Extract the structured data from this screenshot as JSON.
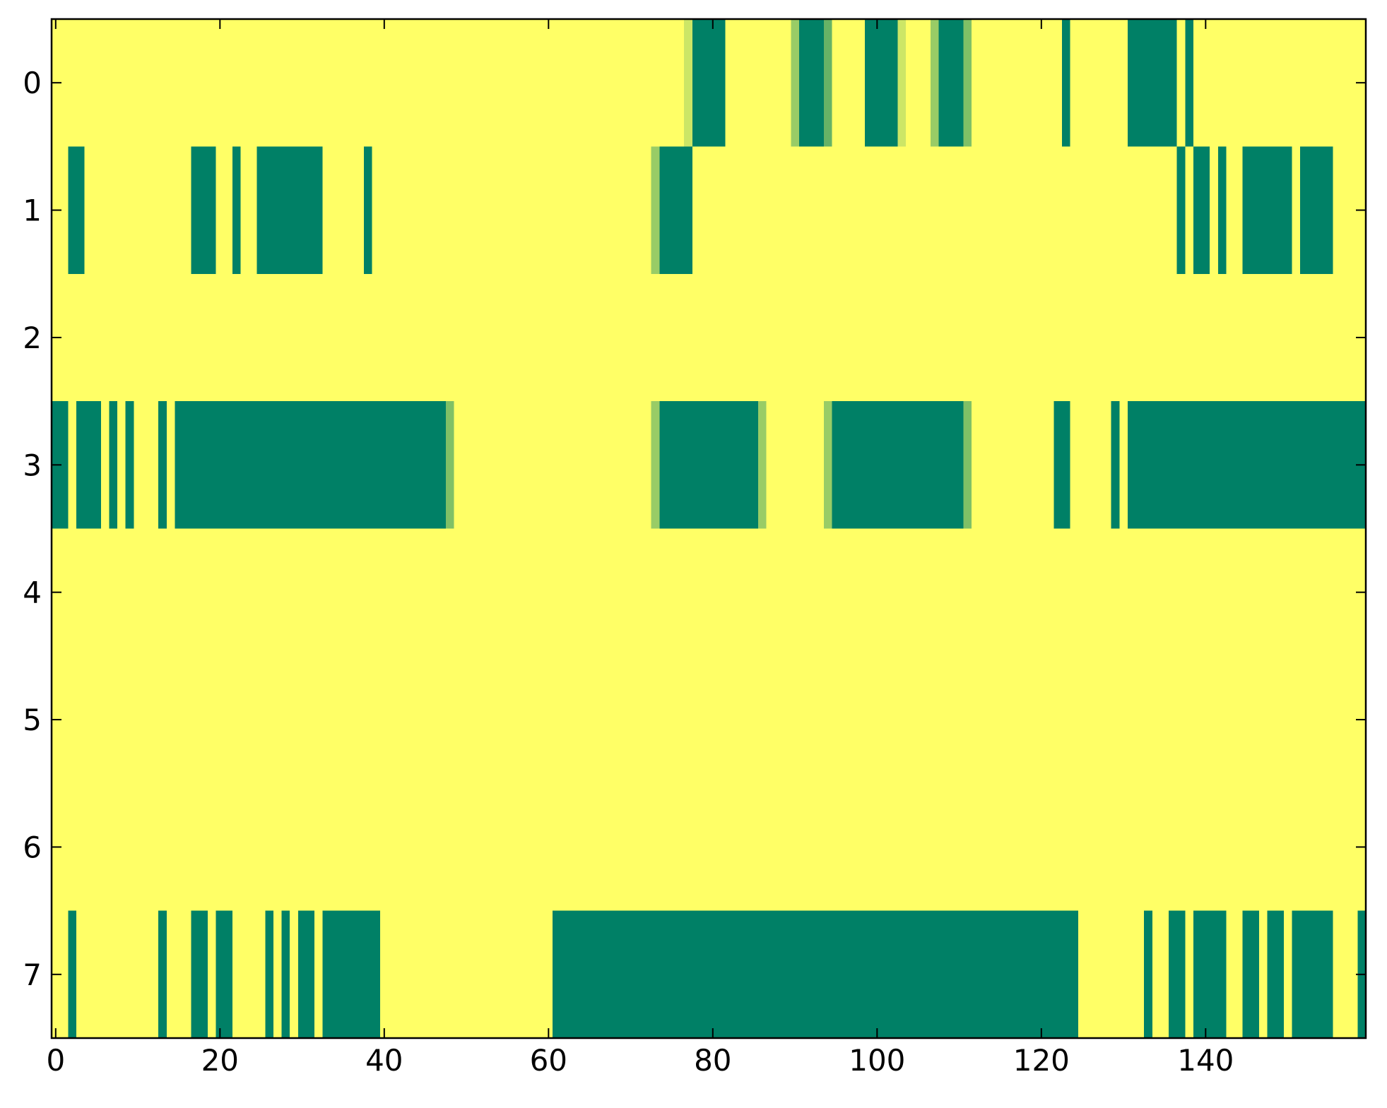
{
  "chart_data": {
    "type": "heatmap",
    "title": "",
    "xlabel": "",
    "ylabel": "",
    "xlim": [
      -0.5,
      159.5
    ],
    "ylim": [
      7.5,
      -0.5
    ],
    "x_ticks": [
      0,
      20,
      40,
      60,
      80,
      100,
      120,
      140
    ],
    "y_ticks": [
      0,
      1,
      2,
      3,
      4,
      5,
      6,
      7
    ],
    "colormap": {
      "low": "#008066",
      "high": "#ffff66",
      "intermediates": [
        "#77c066",
        "#9ccc66",
        "#e2f066"
      ]
    },
    "background_value": 1,
    "rows": [
      {
        "row": 0,
        "segments": [
          [
            77,
            77,
            0.8
          ],
          [
            78,
            81,
            0
          ],
          [
            90,
            90,
            0.6
          ],
          [
            91,
            93,
            0
          ],
          [
            94,
            94,
            0.4
          ],
          [
            99,
            102,
            0
          ],
          [
            103,
            103,
            0.8
          ],
          [
            107,
            107,
            0.6
          ],
          [
            108,
            110,
            0
          ],
          [
            111,
            111,
            0.5
          ],
          [
            123,
            123,
            0
          ],
          [
            131,
            136,
            0
          ],
          [
            138,
            138,
            0
          ]
        ]
      },
      {
        "row": 1,
        "segments": [
          [
            2,
            3,
            0
          ],
          [
            17,
            19,
            0
          ],
          [
            22,
            22,
            0
          ],
          [
            25,
            32,
            0
          ],
          [
            38,
            38,
            0
          ],
          [
            73,
            73,
            0.6
          ],
          [
            74,
            77,
            0
          ],
          [
            137,
            137,
            0
          ],
          [
            139,
            140,
            0
          ],
          [
            142,
            142,
            0
          ],
          [
            145,
            150,
            0
          ],
          [
            152,
            155,
            0
          ]
        ]
      },
      {
        "row": 2,
        "segments": []
      },
      {
        "row": 3,
        "segments": [
          [
            0,
            1,
            0
          ],
          [
            3,
            5,
            0
          ],
          [
            7,
            7,
            0
          ],
          [
            9,
            9,
            0
          ],
          [
            13,
            13,
            0
          ],
          [
            15,
            47,
            0
          ],
          [
            48,
            48,
            0.5
          ],
          [
            73,
            73,
            0.6
          ],
          [
            74,
            85,
            0
          ],
          [
            86,
            86,
            0.6
          ],
          [
            94,
            94,
            0.6
          ],
          [
            95,
            110,
            0
          ],
          [
            111,
            111,
            0.5
          ],
          [
            122,
            123,
            0
          ],
          [
            129,
            129,
            0
          ],
          [
            131,
            159,
            0
          ]
        ]
      },
      {
        "row": 4,
        "segments": []
      },
      {
        "row": 5,
        "segments": []
      },
      {
        "row": 6,
        "segments": []
      },
      {
        "row": 7,
        "segments": [
          [
            2,
            2,
            0
          ],
          [
            13,
            13,
            0
          ],
          [
            17,
            18,
            0
          ],
          [
            20,
            21,
            0
          ],
          [
            26,
            26,
            0
          ],
          [
            28,
            28,
            0
          ],
          [
            30,
            31,
            0
          ],
          [
            33,
            39,
            0
          ],
          [
            61,
            124,
            0
          ],
          [
            133,
            133,
            0
          ],
          [
            136,
            137,
            0
          ],
          [
            139,
            142,
            0
          ],
          [
            145,
            146,
            0
          ],
          [
            148,
            149,
            0
          ],
          [
            151,
            155,
            0
          ],
          [
            159,
            159,
            0
          ]
        ]
      }
    ]
  }
}
